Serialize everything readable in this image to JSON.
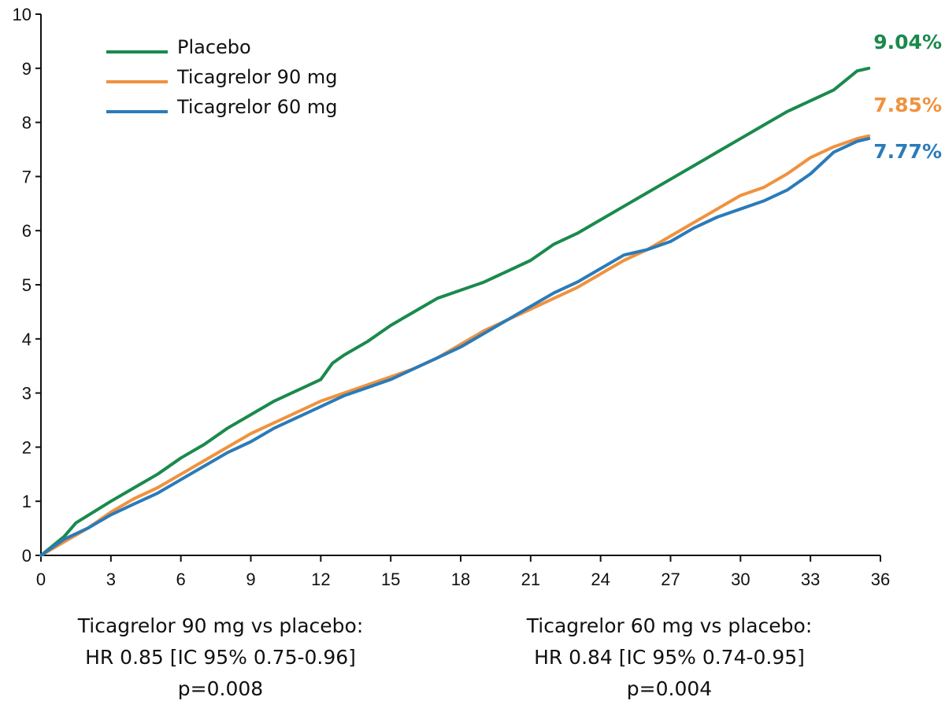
{
  "chart_data": {
    "type": "line",
    "title": "",
    "xlabel": "",
    "ylabel": "",
    "xlim": [
      0,
      36
    ],
    "ylim": [
      0,
      10
    ],
    "x_ticks": [
      0,
      3,
      6,
      9,
      12,
      15,
      18,
      21,
      24,
      27,
      30,
      33,
      36
    ],
    "y_ticks": [
      0,
      1,
      2,
      3,
      4,
      5,
      6,
      7,
      8,
      9,
      10
    ],
    "grid": false,
    "legend_position": "top-left",
    "series": [
      {
        "name": "Placebo",
        "color": "#1a8a4c",
        "end_label": "9.04%",
        "points": [
          [
            0,
            0
          ],
          [
            1,
            0.35
          ],
          [
            1.5,
            0.6
          ],
          [
            3,
            1.0
          ],
          [
            4,
            1.25
          ],
          [
            5,
            1.5
          ],
          [
            6,
            1.8
          ],
          [
            7,
            2.05
          ],
          [
            8,
            2.35
          ],
          [
            9,
            2.6
          ],
          [
            10,
            2.85
          ],
          [
            11,
            3.05
          ],
          [
            12,
            3.25
          ],
          [
            12.5,
            3.55
          ],
          [
            13,
            3.7
          ],
          [
            14,
            3.95
          ],
          [
            15,
            4.25
          ],
          [
            16,
            4.5
          ],
          [
            17,
            4.75
          ],
          [
            18,
            4.9
          ],
          [
            19,
            5.05
          ],
          [
            20,
            5.25
          ],
          [
            21,
            5.45
          ],
          [
            22,
            5.75
          ],
          [
            23,
            5.95
          ],
          [
            24,
            6.2
          ],
          [
            25,
            6.45
          ],
          [
            26,
            6.7
          ],
          [
            27,
            6.95
          ],
          [
            28,
            7.2
          ],
          [
            29,
            7.45
          ],
          [
            30,
            7.7
          ],
          [
            31,
            7.95
          ],
          [
            32,
            8.2
          ],
          [
            33,
            8.4
          ],
          [
            34,
            8.6
          ],
          [
            35,
            8.95
          ],
          [
            35.5,
            9.0
          ]
        ]
      },
      {
        "name": "Ticagrelor 90 mg",
        "color": "#f0923e",
        "end_label": "7.85%",
        "points": [
          [
            0,
            0
          ],
          [
            1,
            0.25
          ],
          [
            2,
            0.5
          ],
          [
            3,
            0.8
          ],
          [
            4,
            1.05
          ],
          [
            5,
            1.25
          ],
          [
            6,
            1.5
          ],
          [
            7,
            1.75
          ],
          [
            8,
            2.0
          ],
          [
            9,
            2.25
          ],
          [
            10,
            2.45
          ],
          [
            11,
            2.65
          ],
          [
            12,
            2.85
          ],
          [
            13,
            3.0
          ],
          [
            14,
            3.15
          ],
          [
            15,
            3.3
          ],
          [
            16,
            3.45
          ],
          [
            17,
            3.65
          ],
          [
            18,
            3.9
          ],
          [
            19,
            4.15
          ],
          [
            20,
            4.35
          ],
          [
            21,
            4.55
          ],
          [
            22,
            4.75
          ],
          [
            23,
            4.95
          ],
          [
            24,
            5.2
          ],
          [
            25,
            5.45
          ],
          [
            26,
            5.65
          ],
          [
            27,
            5.9
          ],
          [
            28,
            6.15
          ],
          [
            29,
            6.4
          ],
          [
            30,
            6.65
          ],
          [
            31,
            6.8
          ],
          [
            32,
            7.05
          ],
          [
            33,
            7.35
          ],
          [
            34,
            7.55
          ],
          [
            35,
            7.7
          ],
          [
            35.5,
            7.75
          ]
        ]
      },
      {
        "name": "Ticagrelor 60 mg",
        "color": "#2b7bb9",
        "end_label": "7.77%",
        "points": [
          [
            0,
            0
          ],
          [
            1,
            0.3
          ],
          [
            2,
            0.5
          ],
          [
            3,
            0.75
          ],
          [
            4,
            0.95
          ],
          [
            5,
            1.15
          ],
          [
            6,
            1.4
          ],
          [
            7,
            1.65
          ],
          [
            8,
            1.9
          ],
          [
            9,
            2.1
          ],
          [
            10,
            2.35
          ],
          [
            11,
            2.55
          ],
          [
            12,
            2.75
          ],
          [
            13,
            2.95
          ],
          [
            14,
            3.1
          ],
          [
            15,
            3.25
          ],
          [
            16,
            3.45
          ],
          [
            17,
            3.65
          ],
          [
            18,
            3.85
          ],
          [
            19,
            4.1
          ],
          [
            20,
            4.35
          ],
          [
            21,
            4.6
          ],
          [
            22,
            4.85
          ],
          [
            23,
            5.05
          ],
          [
            24,
            5.3
          ],
          [
            25,
            5.55
          ],
          [
            26,
            5.65
          ],
          [
            27,
            5.8
          ],
          [
            28,
            6.05
          ],
          [
            29,
            6.25
          ],
          [
            30,
            6.4
          ],
          [
            31,
            6.55
          ],
          [
            32,
            6.75
          ],
          [
            33,
            7.05
          ],
          [
            34,
            7.45
          ],
          [
            35,
            7.65
          ],
          [
            35.5,
            7.7
          ]
        ]
      }
    ]
  },
  "stats": {
    "left": {
      "comparison": "Ticagrelor 90 mg vs placebo:",
      "hr": "HR 0.85 [IC 95% 0.75-0.96]",
      "p": "p=0.008"
    },
    "right": {
      "comparison": "Ticagrelor 60 mg vs placebo:",
      "hr": "HR 0.84 [IC 95% 0.74-0.95]",
      "p": "p=0.004"
    }
  }
}
